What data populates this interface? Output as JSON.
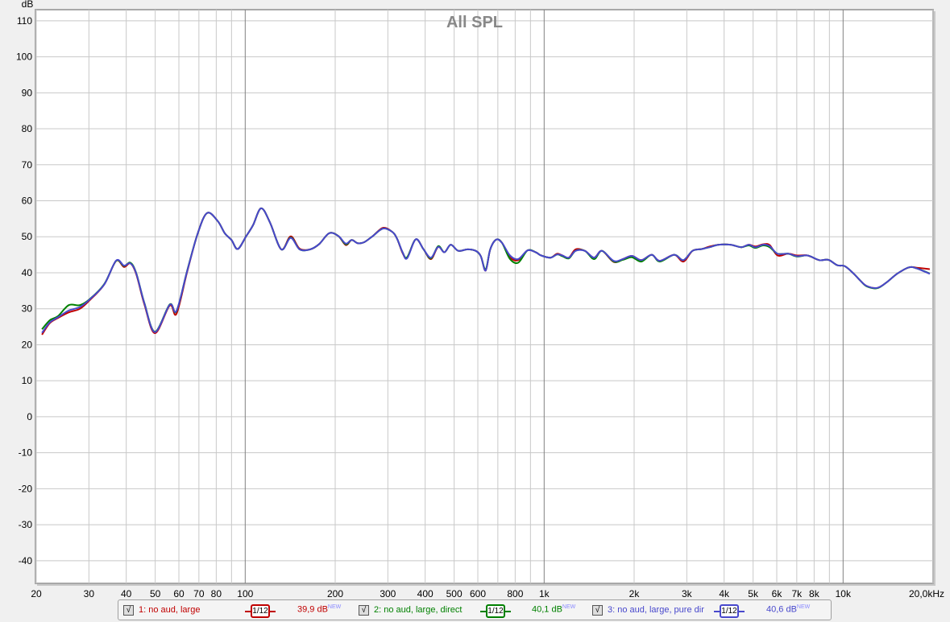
{
  "chart_data": {
    "type": "line",
    "title": "All SPL",
    "ylabel": "dB",
    "xlabel": "",
    "x_scale": "log",
    "xlim": [
      20,
      20000
    ],
    "ylim": [
      -46.3,
      113.1
    ],
    "grid": true,
    "y_ticks": [
      110,
      100,
      90,
      80,
      70,
      60,
      50,
      40,
      30,
      20,
      10,
      0,
      -10,
      -20,
      -30,
      -40
    ],
    "x_gridlines": [
      20,
      30,
      40,
      50,
      60,
      70,
      80,
      90,
      100,
      200,
      300,
      400,
      500,
      600,
      700,
      800,
      900,
      1000,
      2000,
      3000,
      4000,
      5000,
      6000,
      7000,
      8000,
      9000,
      10000,
      20000
    ],
    "x_tick_labels": [
      {
        "f": 20,
        "label": "20"
      },
      {
        "f": 30,
        "label": "30"
      },
      {
        "f": 40,
        "label": "40"
      },
      {
        "f": 50,
        "label": "50"
      },
      {
        "f": 60,
        "label": "60"
      },
      {
        "f": 70,
        "label": "70"
      },
      {
        "f": 80,
        "label": "80"
      },
      {
        "f": 100,
        "label": "100"
      },
      {
        "f": 200,
        "label": "200"
      },
      {
        "f": 300,
        "label": "300"
      },
      {
        "f": 400,
        "label": "400"
      },
      {
        "f": 500,
        "label": "500"
      },
      {
        "f": 600,
        "label": "600"
      },
      {
        "f": 800,
        "label": "800"
      },
      {
        "f": 1000,
        "label": "1k"
      },
      {
        "f": 2000,
        "label": "2k"
      },
      {
        "f": 3000,
        "label": "3k"
      },
      {
        "f": 4000,
        "label": "4k"
      },
      {
        "f": 5000,
        "label": "5k"
      },
      {
        "f": 6000,
        "label": "6k"
      },
      {
        "f": 7000,
        "label": "7k"
      },
      {
        "f": 8000,
        "label": "8k"
      },
      {
        "f": 10000,
        "label": "10k"
      },
      {
        "f": 20000,
        "label": "20,0kHz"
      }
    ],
    "x": [
      20.9,
      22.2,
      23.6,
      25.7,
      28,
      30.3,
      33.8,
      37,
      39.3,
      41.3,
      43.2,
      46,
      49.9,
      55.9,
      58.9,
      63.9,
      69.4,
      74.6,
      81,
      85.4,
      90,
      94.4,
      100.8,
      106.2,
      113,
      121,
      132,
      142,
      152,
      165,
      177,
      191,
      205,
      217,
      227,
      238,
      250,
      267,
      289,
      310,
      322,
      336,
      348,
      372,
      395,
      418,
      442,
      464,
      487,
      516,
      554,
      590,
      614,
      637,
      660,
      691,
      723,
      769,
      819,
      880,
      937,
      977,
      1050,
      1105,
      1151,
      1210,
      1274,
      1368,
      1469,
      1561,
      1709,
      1834,
      1967,
      2112,
      2290,
      2435,
      2723,
      2923,
      3137,
      3367,
      3577,
      3837,
      4201,
      4557,
      4840,
      5085,
      5402,
      5680,
      6036,
      6545,
      7020,
      7610,
      8321,
      8924,
      9556,
      10144,
      10868,
      11424,
      12007,
      13012,
      13960,
      15148,
      16600,
      17630,
      19500
    ],
    "series": [
      {
        "name": "1: no aud, large",
        "color": "#c00000",
        "smoothing": "1/12",
        "level": "39,9 dB",
        "values": [
          22.8,
          26.0,
          27.4,
          29.0,
          30.0,
          32.5,
          36.8,
          43.3,
          41.6,
          42.6,
          39.6,
          31.2,
          23.2,
          30.9,
          28.6,
          40.2,
          51,
          56.6,
          54.3,
          51,
          49.1,
          46.6,
          50.2,
          53.2,
          57.9,
          54,
          46.5,
          50.1,
          46.7,
          46.5,
          48,
          51,
          50.2,
          47.7,
          49.1,
          48.2,
          48.5,
          50.2,
          52.5,
          51.4,
          49.5,
          45.5,
          44.2,
          49.3,
          46.5,
          43.8,
          47.2,
          45.7,
          47.8,
          46.1,
          46.5,
          46.1,
          44.6,
          40.6,
          46.5,
          49.2,
          48.3,
          44.3,
          43.5,
          46.2,
          45.7,
          44.8,
          44.2,
          45.3,
          44.8,
          44.2,
          46.5,
          46.1,
          44.2,
          46.1,
          43.0,
          43.8,
          44.7,
          43.5,
          45,
          43.3,
          45,
          43.1,
          46.1,
          46.6,
          47.3,
          47.8,
          47.8,
          47.1,
          47.8,
          47.3,
          47.9,
          47.7,
          44.8,
          45.3,
          44.8,
          44.8,
          43.5,
          43.6,
          42.1,
          41.8,
          39.7,
          37.8,
          36.3,
          35.8,
          37.3,
          39.7,
          41.5,
          41.4,
          41.0
        ]
      },
      {
        "name": "2: no aud, large, direct",
        "color": "#008000",
        "smoothing": "1/12",
        "level": "40,1 dB",
        "values": [
          24.3,
          26.8,
          27.9,
          31.0,
          31.0,
          32.8,
          36.9,
          43.3,
          41.9,
          42.8,
          39.9,
          31.6,
          23.6,
          31.2,
          29.3,
          40.5,
          51,
          56.6,
          54.3,
          51,
          49.1,
          46.6,
          50.2,
          53.2,
          57.9,
          54,
          46.5,
          49.8,
          46.5,
          46.5,
          48,
          51,
          50.2,
          47.9,
          49.1,
          48.2,
          48.5,
          50.2,
          52.3,
          51.4,
          49.5,
          45.7,
          44.3,
          49.3,
          46.5,
          44.0,
          47.4,
          45.7,
          47.8,
          46.1,
          46.5,
          46.1,
          44.6,
          40.9,
          46.5,
          49.2,
          48.3,
          43.8,
          42.8,
          46.2,
          45.7,
          44.8,
          44.2,
          45.1,
          44.6,
          44.0,
          46.1,
          46.1,
          43.8,
          46.1,
          43.1,
          43.6,
          44.3,
          43.1,
          45,
          43.1,
          45,
          43.5,
          46.1,
          46.6,
          47.1,
          47.8,
          47.8,
          47.1,
          47.6,
          46.9,
          47.6,
          47.1,
          45.3,
          45.3,
          44.5,
          44.8,
          43.5,
          43.6,
          42.1,
          41.8,
          39.7,
          37.8,
          36.2,
          35.7,
          37.3,
          39.7,
          41.5,
          41.2,
          39.8
        ]
      },
      {
        "name": "3: no aud, large, pure dir",
        "color": "#4848cc",
        "smoothing": "1/12",
        "level": "40,6 dB",
        "values": [
          23.3,
          26.2,
          27.6,
          29.5,
          30.5,
          32.7,
          36.8,
          43.4,
          42.0,
          42.6,
          39.8,
          31.5,
          23.5,
          31.1,
          29.4,
          40.4,
          51,
          56.6,
          54.3,
          51,
          49.1,
          46.6,
          50.2,
          53.2,
          57.9,
          54,
          46.5,
          49.7,
          46.5,
          46.5,
          48,
          51,
          50.2,
          48.1,
          49.1,
          48.2,
          48.5,
          50.2,
          52.3,
          51.4,
          49.5,
          45.7,
          44,
          49.3,
          46.5,
          44.2,
          47.2,
          45.7,
          47.8,
          46.1,
          46.5,
          46.1,
          44.6,
          40.6,
          46.5,
          49.2,
          48.3,
          44.8,
          43.8,
          46.2,
          45.7,
          44.8,
          44.2,
          45.1,
          44.8,
          44.2,
          46.1,
          46.1,
          44.2,
          46.1,
          43.3,
          43.8,
          44.7,
          43.5,
          45,
          43.3,
          45,
          43.5,
          46.1,
          46.6,
          47.1,
          47.8,
          47.8,
          47.1,
          47.8,
          47.1,
          47.8,
          47.4,
          45.3,
          45.3,
          44.6,
          44.8,
          43.5,
          43.6,
          42.1,
          41.8,
          39.7,
          37.8,
          36.3,
          35.8,
          37.3,
          39.7,
          41.5,
          41.2,
          39.7
        ]
      }
    ]
  },
  "legend": {
    "checkbox_mark": "√",
    "new_badge": "NEW",
    "items": [
      {
        "label": "1: no aud, large",
        "smoothing": "1/12",
        "level": "39,9 dB",
        "color": "#c00000"
      },
      {
        "label": "2: no aud, large, direct",
        "smoothing": "1/12",
        "level": "40,1 dB",
        "color": "#008000"
      },
      {
        "label": "3: no aud, large, pure dir",
        "smoothing": "1/12",
        "level": "40,6 dB",
        "color": "#4848cc"
      }
    ]
  }
}
